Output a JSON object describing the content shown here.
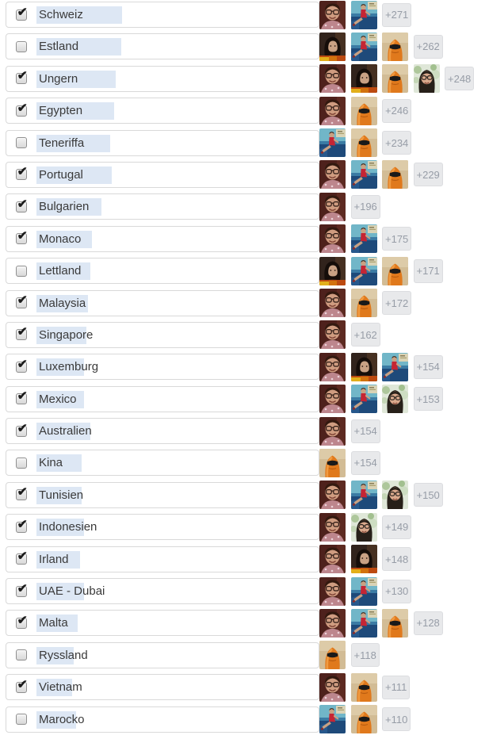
{
  "colors": {
    "selection_highlight": "#dde7f4",
    "row_border": "#d9d9d9",
    "label_text": "#3a3a3a",
    "badge_bg": "#e8e9eb",
    "badge_border": "#dcdde0",
    "badge_text": "#979da7",
    "checkmark": "#1c1c1c"
  },
  "rows": [
    {
      "label": "Schweiz",
      "checked": true,
      "avatars": [
        "woman-selfie",
        "woman-red-dress"
      ],
      "more_count": "+271",
      "highlight_width": 108
    },
    {
      "label": "Estland",
      "checked": false,
      "avatars": [
        "girl-dark-bob",
        "woman-red-dress",
        "orange-balaclava"
      ],
      "more_count": "+262",
      "highlight_width": 107
    },
    {
      "label": "Ungern",
      "checked": true,
      "avatars": [
        "woman-selfie",
        "girl-dark-bob",
        "orange-balaclava",
        "woman-glasses-light"
      ],
      "more_count": "+248",
      "highlight_width": 100
    },
    {
      "label": "Egypten",
      "checked": true,
      "avatars": [
        "woman-selfie",
        "orange-balaclava"
      ],
      "more_count": "+246",
      "highlight_width": 98
    },
    {
      "label": "Teneriffa",
      "checked": false,
      "avatars": [
        "woman-red-dress",
        "orange-balaclava"
      ],
      "more_count": "+234",
      "highlight_width": 93
    },
    {
      "label": "Portugal",
      "checked": true,
      "avatars": [
        "woman-selfie",
        "woman-red-dress",
        "orange-balaclava"
      ],
      "more_count": "+229",
      "highlight_width": 95
    },
    {
      "label": "Bulgarien",
      "checked": true,
      "avatars": [
        "woman-selfie"
      ],
      "more_count": "+196",
      "highlight_width": 82
    },
    {
      "label": "Monaco",
      "checked": true,
      "avatars": [
        "woman-selfie",
        "woman-red-dress"
      ],
      "more_count": "+175",
      "highlight_width": 70
    },
    {
      "label": "Lettland",
      "checked": false,
      "avatars": [
        "girl-dark-bob",
        "woman-red-dress",
        "orange-balaclava"
      ],
      "more_count": "+171",
      "highlight_width": 68
    },
    {
      "label": "Malaysia",
      "checked": true,
      "avatars": [
        "woman-selfie",
        "orange-balaclava"
      ],
      "more_count": "+172",
      "highlight_width": 65
    },
    {
      "label": "Singapore",
      "checked": true,
      "avatars": [
        "woman-selfie"
      ],
      "more_count": "+162",
      "highlight_width": 63
    },
    {
      "label": "Luxemburg",
      "checked": true,
      "avatars": [
        "woman-selfie",
        "girl-dark-bob",
        "woman-red-dress"
      ],
      "more_count": "+154",
      "highlight_width": 60
    },
    {
      "label": "Mexico",
      "checked": true,
      "avatars": [
        "woman-selfie",
        "woman-red-dress",
        "woman-glasses-light"
      ],
      "more_count": "+153",
      "highlight_width": 60
    },
    {
      "label": "Australien",
      "checked": true,
      "avatars": [
        "woman-selfie"
      ],
      "more_count": "+154",
      "highlight_width": 68
    },
    {
      "label": "Kina",
      "checked": false,
      "avatars": [
        "orange-balaclava"
      ],
      "more_count": "+154",
      "highlight_width": 57
    },
    {
      "label": "Tunisien",
      "checked": true,
      "avatars": [
        "woman-selfie",
        "woman-red-dress",
        "woman-glasses-light"
      ],
      "more_count": "+150",
      "highlight_width": 57
    },
    {
      "label": "Indonesien",
      "checked": true,
      "avatars": [
        "woman-selfie",
        "woman-glasses-light"
      ],
      "more_count": "+149",
      "highlight_width": 60
    },
    {
      "label": "Irland",
      "checked": true,
      "avatars": [
        "woman-selfie",
        "girl-dark-bob"
      ],
      "more_count": "+148",
      "highlight_width": 55
    },
    {
      "label": "UAE - Dubai",
      "checked": true,
      "avatars": [
        "woman-selfie",
        "woman-red-dress"
      ],
      "more_count": "+130",
      "highlight_width": 60
    },
    {
      "label": "Malta",
      "checked": true,
      "avatars": [
        "woman-selfie",
        "woman-red-dress",
        "orange-balaclava"
      ],
      "more_count": "+128",
      "highlight_width": 52
    },
    {
      "label": "Ryssland",
      "checked": false,
      "avatars": [
        "orange-balaclava"
      ],
      "more_count": "+118",
      "highlight_width": 47
    },
    {
      "label": "Vietnam",
      "checked": true,
      "avatars": [
        "woman-selfie",
        "orange-balaclava"
      ],
      "more_count": "+111",
      "highlight_width": 45
    },
    {
      "label": "Marocko",
      "checked": false,
      "avatars": [
        "woman-red-dress",
        "orange-balaclava"
      ],
      "more_count": "+110",
      "highlight_width": 50
    }
  ]
}
